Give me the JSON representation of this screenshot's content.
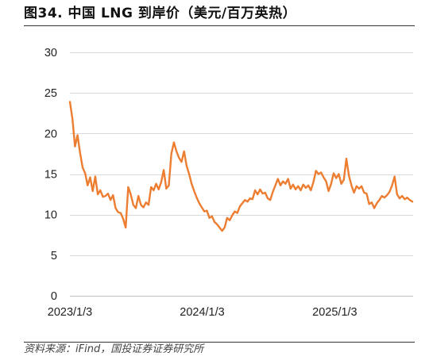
{
  "chart_data": {
    "type": "line",
    "title": "图34. 中国 LNG 到岸价（美元/百万英热）",
    "x_ticks": [
      "2023/1/3",
      "2024/1/3",
      "2025/1/3"
    ],
    "y_ticks": [
      0,
      5,
      10,
      15,
      20,
      25,
      30
    ],
    "xlim": [
      "2023-01-03",
      "2025-08-05"
    ],
    "ylim": [
      0,
      30
    ],
    "grid": true,
    "x": [
      "2023-01-03",
      "2023-01-10",
      "2023-01-17",
      "2023-01-24",
      "2023-01-31",
      "2023-02-07",
      "2023-02-14",
      "2023-02-21",
      "2023-02-28",
      "2023-03-07",
      "2023-03-14",
      "2023-03-21",
      "2023-03-28",
      "2023-04-04",
      "2023-04-11",
      "2023-04-18",
      "2023-04-25",
      "2023-05-02",
      "2023-05-09",
      "2023-05-16",
      "2023-05-23",
      "2023-05-30",
      "2023-06-06",
      "2023-06-13",
      "2023-06-20",
      "2023-06-27",
      "2023-07-04",
      "2023-07-11",
      "2023-07-18",
      "2023-07-25",
      "2023-08-01",
      "2023-08-08",
      "2023-08-15",
      "2023-08-22",
      "2023-08-29",
      "2023-09-05",
      "2023-09-12",
      "2023-09-19",
      "2023-09-26",
      "2023-10-03",
      "2023-10-10",
      "2023-10-17",
      "2023-10-24",
      "2023-10-31",
      "2023-11-07",
      "2023-11-14",
      "2023-11-21",
      "2023-11-28",
      "2023-12-05",
      "2023-12-12",
      "2023-12-19",
      "2023-12-26",
      "2024-01-02",
      "2024-01-09",
      "2024-01-16",
      "2024-01-23",
      "2024-01-30",
      "2024-02-06",
      "2024-02-13",
      "2024-02-20",
      "2024-02-27",
      "2024-03-05",
      "2024-03-12",
      "2024-03-19",
      "2024-03-26",
      "2024-04-02",
      "2024-04-09",
      "2024-04-16",
      "2024-04-23",
      "2024-04-30",
      "2024-05-07",
      "2024-05-14",
      "2024-05-21",
      "2024-05-28",
      "2024-06-04",
      "2024-06-11",
      "2024-06-18",
      "2024-06-25",
      "2024-07-02",
      "2024-07-09",
      "2024-07-16",
      "2024-07-23",
      "2024-07-30",
      "2024-08-06",
      "2024-08-13",
      "2024-08-20",
      "2024-08-27",
      "2024-09-03",
      "2024-09-10",
      "2024-09-17",
      "2024-09-24",
      "2024-10-01",
      "2024-10-08",
      "2024-10-15",
      "2024-10-22",
      "2024-10-29",
      "2024-11-05",
      "2024-11-12",
      "2024-11-19",
      "2024-11-26",
      "2024-12-03",
      "2024-12-10",
      "2024-12-17",
      "2024-12-24",
      "2024-12-31",
      "2025-01-07",
      "2025-01-14",
      "2025-01-21",
      "2025-01-28",
      "2025-02-04",
      "2025-02-11",
      "2025-02-18",
      "2025-02-25",
      "2025-03-04",
      "2025-03-11",
      "2025-03-18",
      "2025-03-25",
      "2025-04-01",
      "2025-04-08",
      "2025-04-15",
      "2025-04-22",
      "2025-04-29",
      "2025-05-06",
      "2025-05-13",
      "2025-05-20",
      "2025-05-27",
      "2025-06-03",
      "2025-06-10",
      "2025-06-17",
      "2025-06-24",
      "2025-07-01",
      "2025-07-08",
      "2025-07-15",
      "2025-07-22",
      "2025-07-29",
      "2025-08-05"
    ],
    "series": [
      {
        "color": "#ED7D31",
        "values": [
          23.9,
          21.8,
          18.4,
          19.8,
          17.6,
          15.8,
          15.1,
          13.6,
          14.6,
          12.9,
          14.7,
          12.5,
          13.0,
          12.2,
          12.3,
          12.6,
          11.8,
          12.4,
          10.8,
          10.3,
          10.2,
          9.5,
          8.4,
          13.4,
          12.5,
          11.2,
          10.8,
          12.3,
          11.2,
          10.9,
          11.5,
          11.2,
          13.4,
          13.0,
          13.8,
          13.1,
          14.0,
          15.5,
          13.2,
          13.6,
          17.5,
          18.9,
          17.8,
          17.0,
          16.5,
          17.8,
          16.0,
          15.0,
          13.8,
          12.9,
          12.1,
          11.4,
          10.9,
          10.4,
          10.5,
          9.6,
          9.8,
          9.1,
          8.8,
          8.4,
          8.0,
          8.4,
          9.6,
          9.3,
          9.9,
          10.4,
          10.2,
          11.0,
          11.4,
          11.8,
          11.6,
          12.0,
          11.9,
          13.0,
          12.5,
          13.1,
          12.6,
          12.7,
          12.0,
          11.8,
          12.8,
          13.6,
          14.4,
          13.6,
          14.1,
          13.8,
          14.4,
          13.2,
          13.7,
          13.1,
          13.5,
          13.0,
          13.7,
          13.3,
          13.6,
          13.0,
          14.0,
          15.4,
          15.0,
          15.2,
          14.6,
          14.1,
          12.9,
          13.8,
          15.1,
          14.5,
          15.0,
          13.8,
          14.3,
          16.9,
          14.8,
          13.6,
          12.7,
          13.5,
          13.2,
          13.5,
          12.7,
          12.6,
          11.3,
          11.5,
          10.8,
          11.4,
          11.8,
          12.3,
          12.1,
          12.4,
          12.8,
          13.6,
          14.7,
          12.5,
          12.0,
          12.3,
          11.9,
          12.1,
          11.8,
          11.6
        ]
      }
    ]
  },
  "source": "资料来源：iFind，国投证券证券研究所"
}
